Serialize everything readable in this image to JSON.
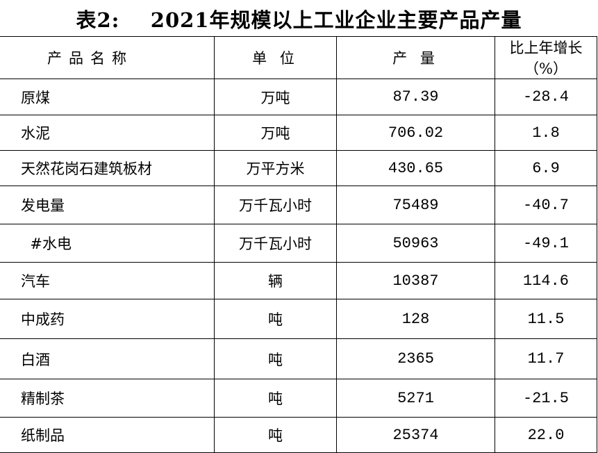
{
  "title": "表2:    2021年规模以上工业企业主要产品产量",
  "headers": [
    "产品名称",
    "单 位",
    "产 量",
    "比上年增长（%）"
  ],
  "rows": [
    {
      "name": "原煤",
      "unit": "万吨",
      "output": "87.39",
      "growth": "-28.4"
    },
    {
      "name": "水泥",
      "unit": "万吨",
      "output": "706.02",
      "growth": "1.8"
    },
    {
      "name": "天然花岗石建筑板材",
      "unit": "万平方米",
      "output": "430.65",
      "growth": "6.9"
    },
    {
      "name": "发电量",
      "unit": "万千瓦小时",
      "output": "75489",
      "growth": "-40.7"
    },
    {
      "name": "  #水电",
      "unit": "万千瓦小时",
      "output": "50963",
      "growth": "-49.1"
    },
    {
      "name": "汽车",
      "unit": "辆",
      "output": "10387",
      "growth": "114.6"
    },
    {
      "name": "中成药",
      "unit": "吨",
      "output": "128",
      "growth": "11.5"
    },
    {
      "name": "白酒",
      "unit": "吨",
      "output": "2365",
      "growth": "11.7"
    },
    {
      "name": "精制茶",
      "unit": "吨",
      "output": "5271",
      "growth": "-21.5"
    },
    {
      "name": "纸制品",
      "unit": "吨",
      "output": "25374",
      "growth": "22.0"
    }
  ]
}
